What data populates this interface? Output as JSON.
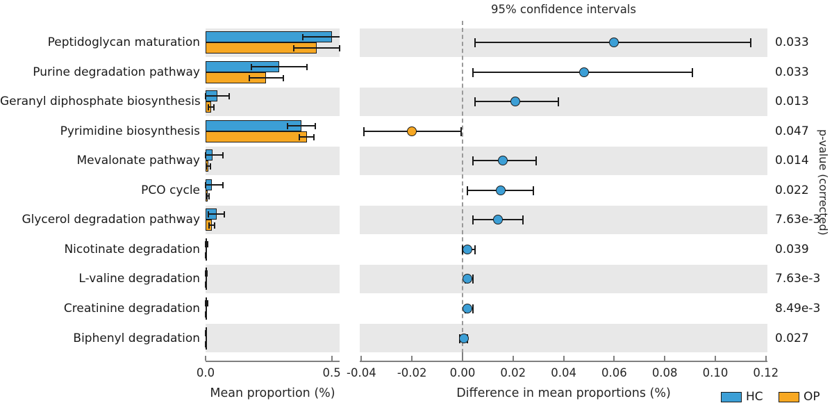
{
  "title": "95% confidence intervals",
  "right_ylabel": "p-value (corrected)",
  "left_axis": {
    "label": "Mean proportion (%)",
    "ticks": [
      0.0,
      0.5
    ],
    "tick_labels": [
      "0.0",
      "0.5"
    ],
    "xlim": [
      0.0,
      0.5
    ]
  },
  "right_axis": {
    "label": "Difference in mean proportions (%)",
    "ticks": [
      -0.04,
      -0.02,
      0.0,
      0.02,
      0.04,
      0.06,
      0.08,
      0.1,
      0.12
    ],
    "tick_labels": [
      "-0.04",
      "-0.02",
      "0.00",
      "0.02",
      "0.04",
      "0.06",
      "0.08",
      "0.10",
      "0.12"
    ],
    "xlim": [
      -0.04,
      0.12
    ],
    "zero_line": 0.0
  },
  "legend": [
    {
      "label": "HC",
      "color_key": "hc"
    },
    {
      "label": "OP",
      "color_key": "op"
    }
  ],
  "colors": {
    "hc": "#3C9FD6",
    "op": "#F7A823",
    "stripe": "#E8E8E8",
    "axis": "#7F7F7F",
    "dashed_line": "#999999",
    "errorbar": "#1A1A1A",
    "text": "#262626"
  },
  "chart_data": {
    "type": "extended-error-bar",
    "title": "95% confidence intervals",
    "xlabel_left": "Mean proportion (%)",
    "xlabel_right": "Difference in mean proportions (%)",
    "ylabel_right": "p-value (corrected)",
    "legend_position": "bottom-right",
    "grid": false,
    "categories": [
      "Peptidoglycan maturation",
      "Purine degradation pathway",
      "Geranyl diphosphate biosynthesis",
      "Pyrimidine biosynthesis",
      "Mevalonate pathway",
      "PCO cycle",
      "Glycerol degradation pathway",
      "Nicotinate degradation",
      "L-valine degradation",
      "Creatinine degradation",
      "Biphenyl degradation"
    ],
    "series": [
      {
        "name": "HC",
        "values": [
          0.5,
          0.29,
          0.046,
          0.38,
          0.027,
          0.025,
          0.043,
          0.003,
          0.003,
          0.003,
          0.001
        ],
        "errors": [
          0.115,
          0.11,
          0.048,
          0.055,
          0.042,
          0.044,
          0.032,
          0.004,
          0.003,
          0.004,
          0.002
        ]
      },
      {
        "name": "OP",
        "values": [
          0.44,
          0.24,
          0.022,
          0.4,
          0.011,
          0.009,
          0.025,
          0.001,
          0.001,
          0.001,
          0.001
        ],
        "errors": [
          0.09,
          0.067,
          0.012,
          0.029,
          0.007,
          0.005,
          0.012,
          0.001,
          0.001,
          0.001,
          0.001
        ]
      }
    ],
    "difference": {
      "values": [
        0.06,
        0.048,
        0.021,
        -0.02,
        0.016,
        0.015,
        0.014,
        0.002,
        0.002,
        0.002,
        0.0005
      ],
      "ci_low": [
        0.005,
        0.004,
        0.005,
        -0.039,
        0.004,
        0.002,
        0.004,
        0.0,
        0.001,
        0.001,
        -0.001
      ],
      "ci_high": [
        0.114,
        0.091,
        0.038,
        -0.0005,
        0.029,
        0.028,
        0.024,
        0.005,
        0.004,
        0.004,
        0.002
      ],
      "enriched_group": [
        "HC",
        "HC",
        "HC",
        "OP",
        "HC",
        "HC",
        "HC",
        "HC",
        "HC",
        "HC",
        "HC"
      ]
    },
    "p_values": [
      "0.033",
      "0.033",
      "0.013",
      "0.047",
      "0.014",
      "0.022",
      "7.63e-3",
      "0.039",
      "7.63e-3",
      "8.49e-3",
      "0.027"
    ]
  }
}
